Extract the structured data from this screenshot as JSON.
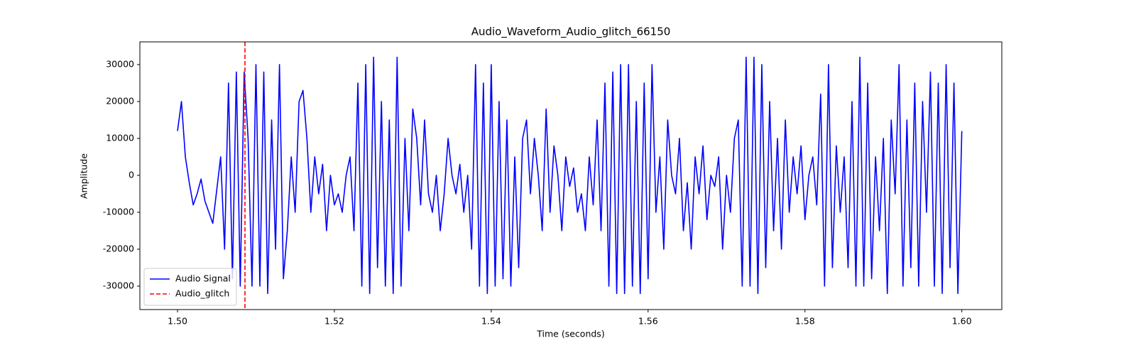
{
  "chart_data": {
    "type": "line",
    "title": "Audio_Waveform_Audio_glitch_66150",
    "xlabel": "Time (seconds)",
    "ylabel": "Amplitude",
    "x": [
      1.5,
      1.5005,
      1.501,
      1.5015,
      1.502,
      1.5025,
      1.503,
      1.5035,
      1.504,
      1.5045,
      1.505,
      1.5055,
      1.506,
      1.5065,
      1.507,
      1.5075,
      1.508,
      1.5085,
      1.509,
      1.5095,
      1.51,
      1.5105,
      1.511,
      1.5115,
      1.512,
      1.5125,
      1.513,
      1.5135,
      1.514,
      1.5145,
      1.515,
      1.5155,
      1.516,
      1.5165,
      1.517,
      1.5175,
      1.518,
      1.5185,
      1.519,
      1.5195,
      1.52,
      1.5205,
      1.521,
      1.5215,
      1.522,
      1.5225,
      1.523,
      1.5235,
      1.524,
      1.5245,
      1.525,
      1.5255,
      1.526,
      1.5265,
      1.527,
      1.5275,
      1.528,
      1.5285,
      1.529,
      1.5295,
      1.53,
      1.5305,
      1.531,
      1.5315,
      1.532,
      1.5325,
      1.533,
      1.5335,
      1.534,
      1.5345,
      1.535,
      1.5355,
      1.536,
      1.5365,
      1.537,
      1.5375,
      1.538,
      1.5385,
      1.539,
      1.5395,
      1.54,
      1.5405,
      1.541,
      1.5415,
      1.542,
      1.5425,
      1.543,
      1.5435,
      1.544,
      1.5445,
      1.545,
      1.5455,
      1.546,
      1.5465,
      1.547,
      1.5475,
      1.548,
      1.5485,
      1.549,
      1.5495,
      1.55,
      1.5505,
      1.551,
      1.5515,
      1.552,
      1.5525,
      1.553,
      1.5535,
      1.554,
      1.5545,
      1.555,
      1.5555,
      1.556,
      1.5565,
      1.557,
      1.5575,
      1.558,
      1.5585,
      1.559,
      1.5595,
      1.56,
      1.5605,
      1.561,
      1.5615,
      1.562,
      1.5625,
      1.563,
      1.5635,
      1.564,
      1.5645,
      1.565,
      1.5655,
      1.566,
      1.5665,
      1.567,
      1.5675,
      1.568,
      1.5685,
      1.569,
      1.5695,
      1.57,
      1.5705,
      1.571,
      1.5715,
      1.572,
      1.5725,
      1.573,
      1.5735,
      1.574,
      1.5745,
      1.575,
      1.5755,
      1.576,
      1.5765,
      1.577,
      1.5775,
      1.578,
      1.5785,
      1.579,
      1.5795,
      1.58,
      1.5805,
      1.581,
      1.5815,
      1.582,
      1.5825,
      1.583,
      1.5835,
      1.584,
      1.5845,
      1.585,
      1.5855,
      1.586,
      1.5865,
      1.587,
      1.5875,
      1.588,
      1.5885,
      1.589,
      1.5895,
      1.59,
      1.5905,
      1.591,
      1.5915,
      1.592,
      1.5925,
      1.593,
      1.5935,
      1.594,
      1.5945,
      1.595,
      1.5955,
      1.596,
      1.5965,
      1.597,
      1.5975,
      1.598,
      1.5985,
      1.599,
      1.5995,
      1.6
    ],
    "series": [
      {
        "name": "Audio Signal",
        "color": "#0000ff",
        "values": [
          12000,
          20000,
          5000,
          -2000,
          -8000,
          -5000,
          -1000,
          -7000,
          -10000,
          -13000,
          -4000,
          5000,
          -20000,
          25000,
          -28000,
          28000,
          -30000,
          28000,
          10000,
          -30000,
          30000,
          -30000,
          28000,
          -32000,
          15000,
          -20000,
          30000,
          -28000,
          -15000,
          5000,
          -10000,
          20000,
          23000,
          10000,
          -10000,
          5000,
          -5000,
          3000,
          -15000,
          0,
          -8000,
          -5000,
          -10000,
          0,
          5000,
          -15000,
          25000,
          -30000,
          30000,
          -32000,
          32000,
          -25000,
          20000,
          -30000,
          15000,
          -32000,
          32000,
          -30000,
          10000,
          -15000,
          18000,
          10000,
          -8000,
          15000,
          -5000,
          -10000,
          0,
          -15000,
          -5000,
          10000,
          0,
          -5000,
          3000,
          -10000,
          0,
          -20000,
          30000,
          -30000,
          25000,
          -32000,
          30000,
          -30000,
          20000,
          -28000,
          15000,
          -30000,
          5000,
          -25000,
          10000,
          15000,
          -5000,
          10000,
          0,
          -15000,
          18000,
          -10000,
          8000,
          0,
          -15000,
          5000,
          -3000,
          2000,
          -10000,
          -5000,
          -15000,
          5000,
          -8000,
          15000,
          -15000,
          25000,
          -30000,
          28000,
          -32000,
          30000,
          -32000,
          30000,
          -30000,
          20000,
          -32000,
          25000,
          -28000,
          30000,
          -10000,
          5000,
          -20000,
          15000,
          0,
          -5000,
          10000,
          -15000,
          -2000,
          -20000,
          5000,
          -5000,
          8000,
          -12000,
          0,
          -3000,
          5000,
          -20000,
          0,
          -10000,
          10000,
          15000,
          -30000,
          32000,
          -30000,
          32000,
          -32000,
          30000,
          -25000,
          20000,
          -15000,
          10000,
          -20000,
          15000,
          -10000,
          5000,
          -5000,
          8000,
          -12000,
          0,
          5000,
          -8000,
          22000,
          -30000,
          30000,
          -25000,
          8000,
          -10000,
          5000,
          -25000,
          20000,
          -30000,
          32000,
          -30000,
          25000,
          -28000,
          5000,
          -15000,
          10000,
          -32000,
          15000,
          -5000,
          30000,
          -30000,
          15000,
          -25000,
          25000,
          -30000,
          20000,
          -10000,
          28000,
          -30000,
          25000,
          -32000,
          30000,
          -25000,
          25000,
          -32000,
          12000
        ]
      }
    ],
    "vlines": [
      {
        "name": "Audio_glitch",
        "x": 1.5086,
        "color": "#ff0000"
      }
    ],
    "xlim": [
      1.4952,
      1.6051
    ],
    "ylim": [
      -36350,
      36150
    ],
    "xticks": [
      {
        "value": 1.5,
        "label": "1.50"
      },
      {
        "value": 1.52,
        "label": "1.52"
      },
      {
        "value": 1.54,
        "label": "1.54"
      },
      {
        "value": 1.56,
        "label": "1.56"
      },
      {
        "value": 1.58,
        "label": "1.58"
      },
      {
        "value": 1.6,
        "label": "1.60"
      }
    ],
    "yticks": [
      -30000,
      -20000,
      -10000,
      0,
      10000,
      20000,
      30000
    ],
    "legend": "lower left"
  }
}
